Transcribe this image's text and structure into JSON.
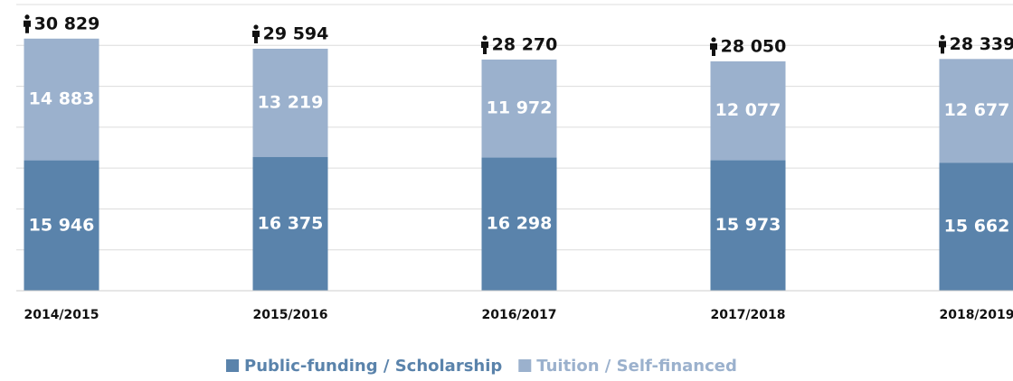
{
  "chart_data": {
    "type": "stacked_bar",
    "categories": [
      "2014/2015",
      "2015/2016",
      "2016/2017",
      "2017/2018",
      "2018/2019"
    ],
    "series": [
      {
        "name": "Public-funding / Scholarship",
        "color": "#5a83ab",
        "values": [
          15946,
          16375,
          16298,
          15973,
          15662
        ],
        "value_labels": [
          "15 946",
          "16 375",
          "16 298",
          "15 973",
          "15 662"
        ]
      },
      {
        "name": "Tuition / Self-financed",
        "color": "#9bb1cd",
        "values": [
          14883,
          13219,
          11972,
          12077,
          12677
        ],
        "value_labels": [
          "14 883",
          "13 219",
          "11 972",
          "12 077",
          "12 677"
        ]
      }
    ],
    "totals": {
      "values": [
        30829,
        29594,
        28270,
        28050,
        28339
      ],
      "value_labels": [
        "30 829",
        "29 594",
        "28 270",
        "28 050",
        "28 339"
      ]
    },
    "ylim": [
      0,
      35000
    ],
    "yticks": [
      0,
      5000,
      10000,
      15000,
      20000,
      25000,
      30000,
      35000
    ],
    "grid": true
  }
}
